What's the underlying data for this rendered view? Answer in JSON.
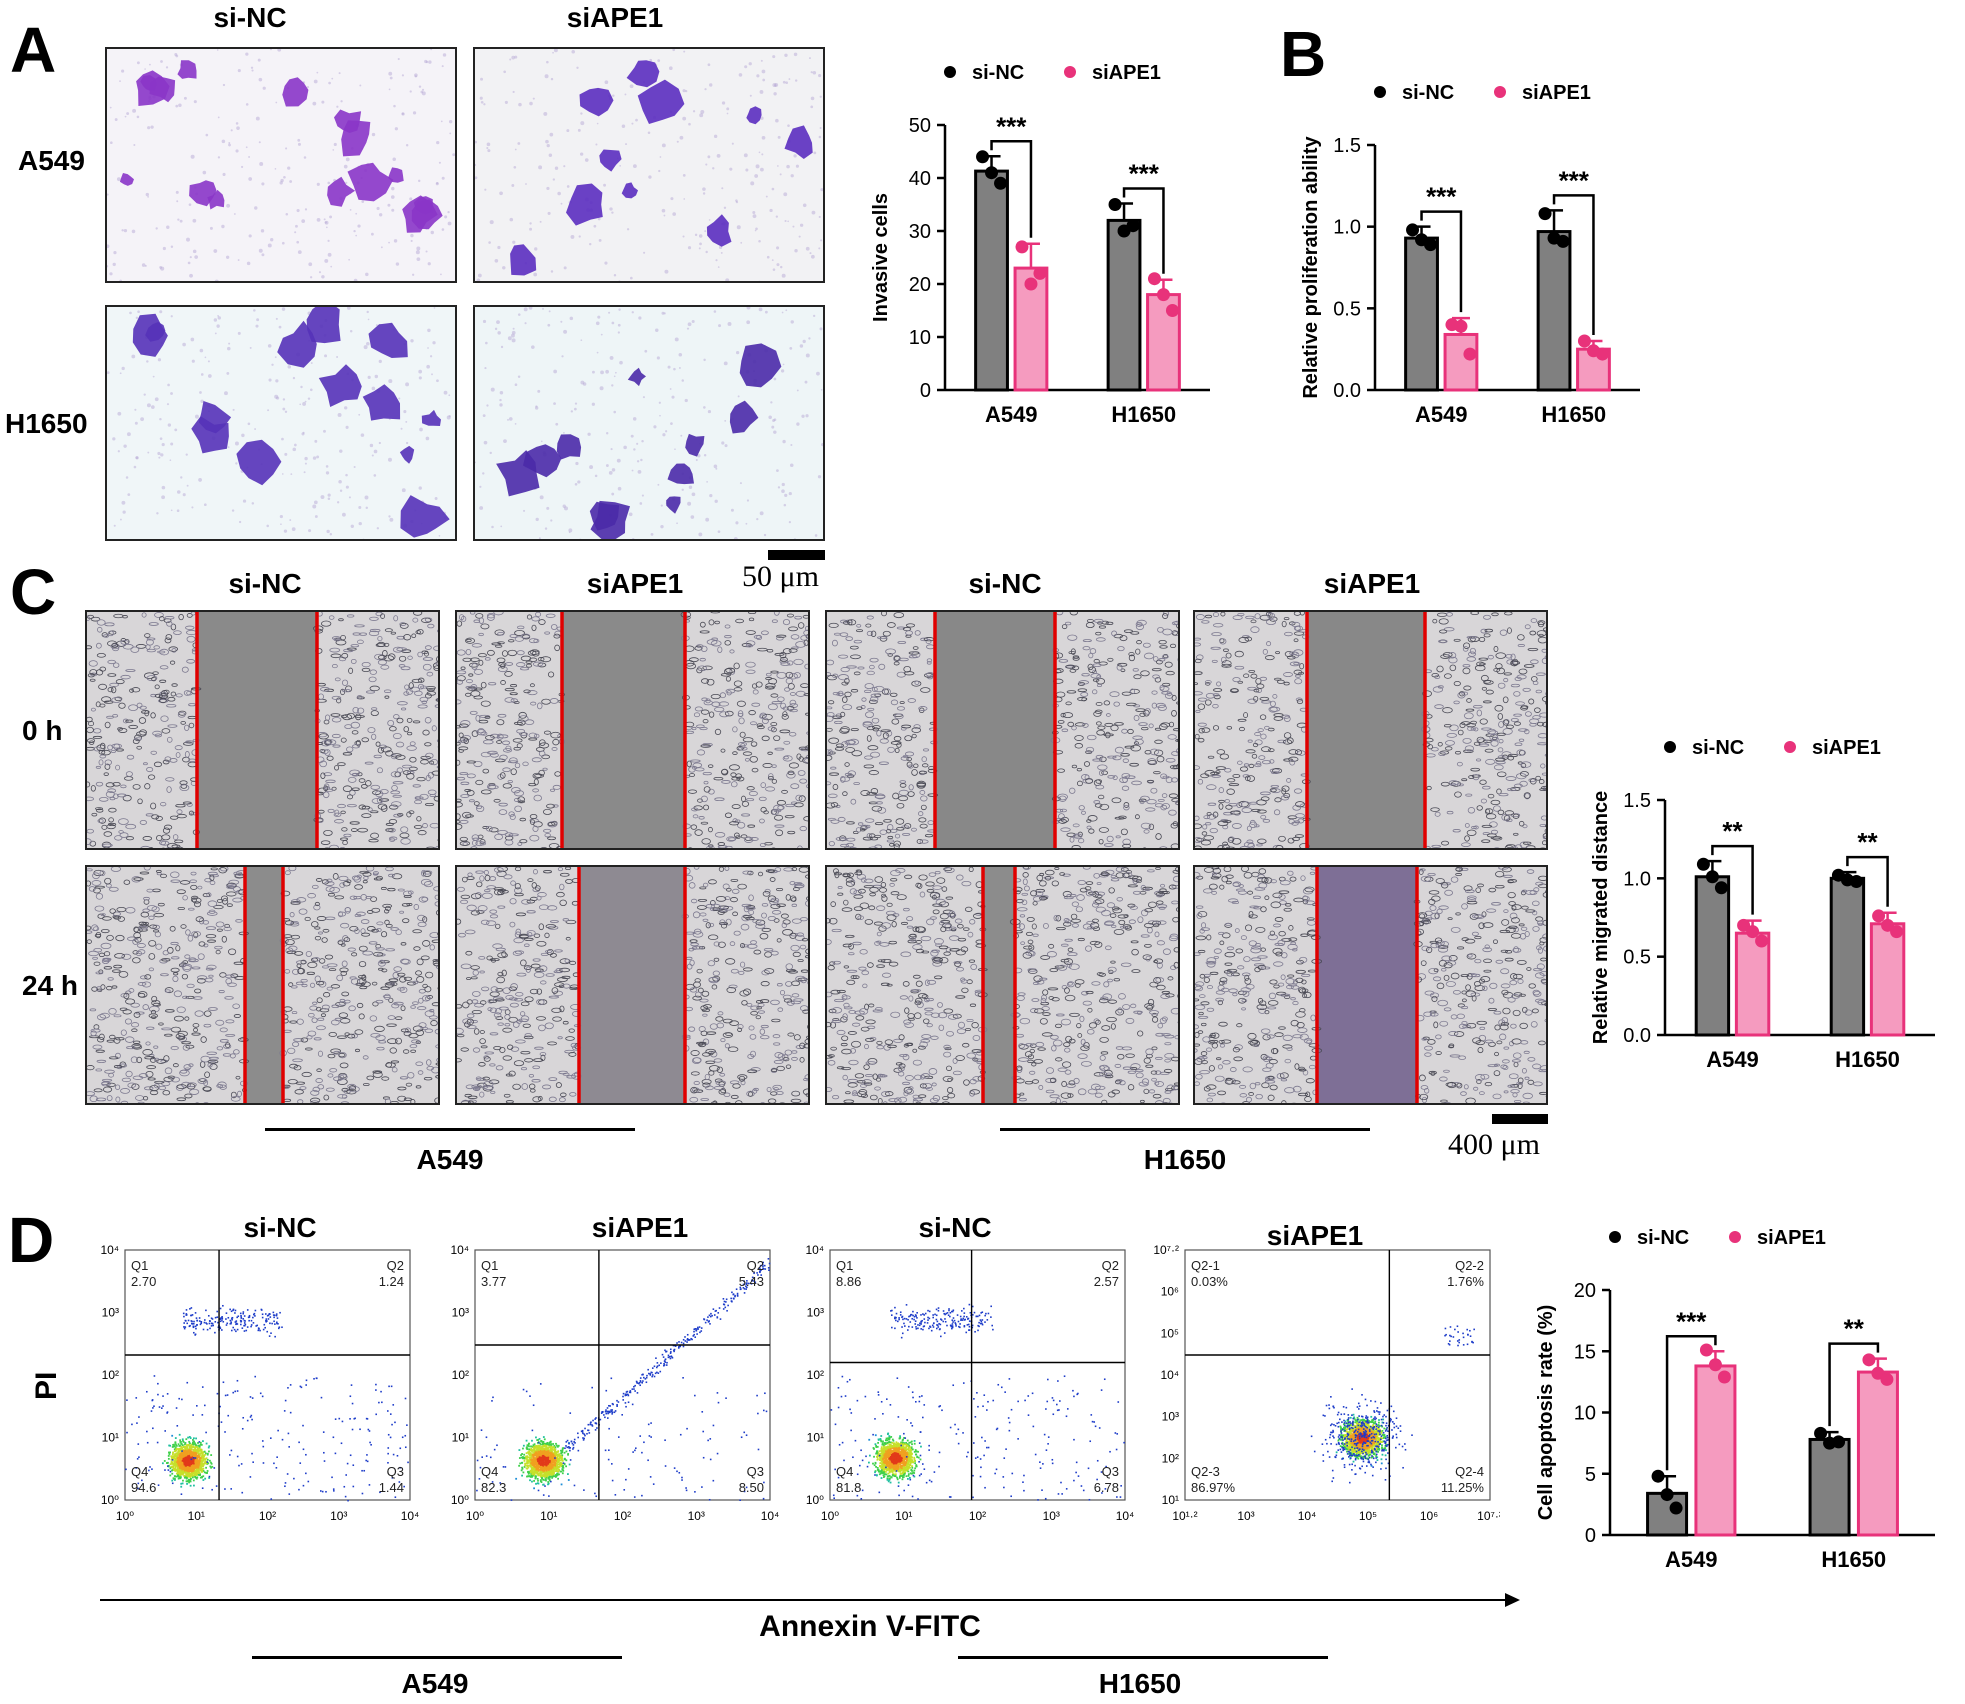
{
  "colors": {
    "nc_bar": "#808080",
    "ape_bar": "#f59bbf",
    "ape_edge": "#e8327a",
    "nc_edge": "#000000",
    "ape_dot": "#e8327a",
    "red_line": "#e00000"
  },
  "panels": {
    "A": {
      "letter": "A",
      "columns": [
        "si-NC",
        "siAPE1"
      ],
      "rows": [
        "A549",
        "H1650"
      ],
      "scale": "50 μm"
    },
    "B": {
      "letter": "B"
    },
    "C": {
      "letter": "C",
      "columns": [
        "si-NC",
        "siAPE1",
        "si-NC",
        "siAPE1"
      ],
      "rows": [
        "0 h",
        "24 h"
      ],
      "groups": [
        "A549",
        "H1650"
      ],
      "scale": "400 μm"
    },
    "D": {
      "letter": "D",
      "columns": [
        "si-NC",
        "siAPE1",
        "si-NC",
        "siAPE1"
      ],
      "groups": [
        "A549",
        "H1650"
      ],
      "xlabel": "Annexin V-FITC",
      "ylabel": "PI"
    }
  },
  "flow": [
    {
      "q1": "Q1",
      "q1v": "2.70",
      "q2": "Q2",
      "q2v": "1.24",
      "q3": "Q3",
      "q3v": "1.44",
      "q4": "Q4",
      "q4v": "94.6",
      "xticks": [
        "10⁰",
        "10¹",
        "10²",
        "10³",
        "10⁴"
      ],
      "yticks": [
        "10⁰",
        "10¹",
        "10²",
        "10³",
        "10⁴"
      ]
    },
    {
      "q1": "Q1",
      "q1v": "3.77",
      "q2": "Q2",
      "q2v": "5.43",
      "q3": "Q3",
      "q3v": "8.50",
      "q4": "Q4",
      "q4v": "82.3",
      "xticks": [
        "10⁰",
        "10¹",
        "10²",
        "10³",
        "10⁴"
      ],
      "yticks": [
        "10⁰",
        "10¹",
        "10²",
        "10³",
        "10⁴"
      ]
    },
    {
      "q1": "Q1",
      "q1v": "8.86",
      "q2": "Q2",
      "q2v": "2.57",
      "q3": "Q3",
      "q3v": "6.78",
      "q4": "Q4",
      "q4v": "81.8",
      "xticks": [
        "10⁰",
        "10¹",
        "10²",
        "10³",
        "10⁴"
      ],
      "yticks": [
        "10⁰",
        "10¹",
        "10²",
        "10³",
        "10⁴"
      ]
    },
    {
      "q1": "Q2-1",
      "q1v": "0.03%",
      "q2": "Q2-2",
      "q2v": "1.76%",
      "q3": "Q2-4",
      "q3v": "11.25%",
      "q4": "Q2-3",
      "q4v": "86.97%",
      "xticks": [
        "10¹·²",
        "10³",
        "10⁴",
        "10⁵",
        "10⁶",
        "10⁷·²"
      ],
      "yticks": [
        "10¹",
        "10²",
        "10³",
        "10⁴",
        "10⁵",
        "10⁶",
        "10⁷·²"
      ]
    }
  ],
  "chart_data": [
    {
      "type": "bar",
      "id": "invasive",
      "categories": [
        "A549",
        "H1650"
      ],
      "series": [
        {
          "name": "si-NC",
          "values": [
            41.3,
            32.0
          ],
          "sd": [
            2.8,
            3.2
          ],
          "points": [
            [
              44,
              41,
              39
            ],
            [
              35,
              30,
              31
            ]
          ]
        },
        {
          "name": "siAPE1",
          "values": [
            23.0,
            18.0
          ],
          "sd": [
            4.6,
            2.8
          ],
          "points": [
            [
              27,
              20,
              22
            ],
            [
              21,
              18,
              15
            ]
          ]
        }
      ],
      "ylabel": "Invasive cells",
      "ylim": [
        0,
        50
      ],
      "yticks": [
        0,
        10,
        20,
        30,
        40,
        50
      ],
      "sig": [
        "***",
        "***"
      ],
      "legend": "top"
    },
    {
      "type": "bar",
      "id": "proliferation",
      "categories": [
        "A549",
        "H1650"
      ],
      "series": [
        {
          "name": "si-NC",
          "values": [
            0.93,
            0.97
          ],
          "sd": [
            0.07,
            0.13
          ],
          "points": [
            [
              0.98,
              0.92,
              0.89
            ],
            [
              1.08,
              0.93,
              0.91
            ]
          ]
        },
        {
          "name": "siAPE1",
          "values": [
            0.34,
            0.25
          ],
          "sd": [
            0.1,
            0.05
          ],
          "points": [
            [
              0.4,
              0.39,
              0.22
            ],
            [
              0.3,
              0.24,
              0.22
            ]
          ]
        }
      ],
      "ylabel": "Relative proliferation ability",
      "ylim": [
        0,
        1.5
      ],
      "yticks": [
        "0.0",
        "0.5",
        "1.0",
        "1.5"
      ],
      "sig": [
        "***",
        "***"
      ],
      "legend": "top"
    },
    {
      "type": "bar",
      "id": "migration",
      "categories": [
        "A549",
        "H1650"
      ],
      "series": [
        {
          "name": "si-NC",
          "values": [
            1.01,
            1.0
          ],
          "sd": [
            0.1,
            0.04
          ],
          "points": [
            [
              1.09,
              1.01,
              0.94
            ],
            [
              1.02,
              0.99,
              0.98
            ]
          ]
        },
        {
          "name": "siAPE1",
          "values": [
            0.65,
            0.71
          ],
          "sd": [
            0.08,
            0.07
          ],
          "points": [
            [
              0.7,
              0.66,
              0.6
            ],
            [
              0.76,
              0.7,
              0.66
            ]
          ]
        }
      ],
      "ylabel": "Relative migrated distance",
      "ylim": [
        0,
        1.5
      ],
      "yticks": [
        "0.0",
        "0.5",
        "1.0",
        "1.5"
      ],
      "sig": [
        "**",
        "**"
      ],
      "legend": "top"
    },
    {
      "type": "bar",
      "id": "apoptosis",
      "categories": [
        "A549",
        "H1650"
      ],
      "series": [
        {
          "name": "si-NC",
          "values": [
            3.4,
            7.8
          ],
          "sd": [
            1.4,
            0.6
          ],
          "points": [
            [
              4.8,
              3.3,
              2.2
            ],
            [
              8.3,
              7.5,
              7.6
            ]
          ]
        },
        {
          "name": "siAPE1",
          "values": [
            13.8,
            13.3
          ],
          "sd": [
            1.2,
            1.1
          ],
          "points": [
            [
              15.1,
              13.9,
              12.9
            ],
            [
              14.3,
              13.2,
              12.7
            ]
          ]
        }
      ],
      "ylabel": "Cell apoptosis rate (%)",
      "ylim": [
        0,
        20
      ],
      "yticks": [
        0,
        5,
        10,
        15,
        20
      ],
      "sig": [
        "***",
        "**"
      ],
      "legend": "top"
    }
  ]
}
